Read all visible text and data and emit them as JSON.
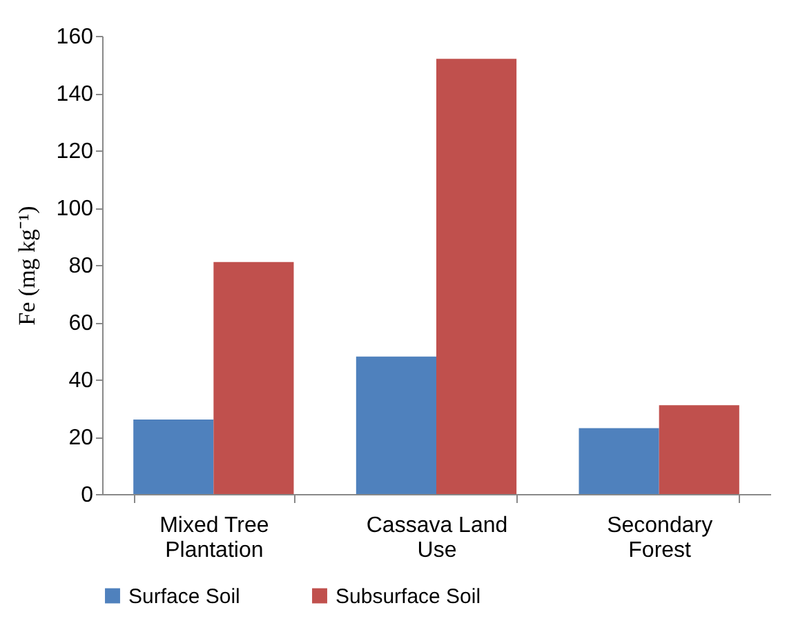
{
  "chart_data": {
    "type": "bar",
    "ylabel": "Fe (mg kg⁻¹)",
    "categories": [
      "Mixed Tree Plantation",
      "Cassava Land Use",
      "Secondary Forest"
    ],
    "series": [
      {
        "name": "Surface Soil",
        "color": "#4f81bd",
        "values": [
          26,
          48,
          23
        ]
      },
      {
        "name": "Subsurface Soil",
        "color": "#c0504d",
        "values": [
          81,
          152,
          31
        ]
      }
    ],
    "ylim": [
      0,
      160
    ],
    "yticks": [
      0,
      20,
      40,
      60,
      80,
      100,
      120,
      140,
      160
    ],
    "grid": false,
    "legend": "bottom"
  }
}
